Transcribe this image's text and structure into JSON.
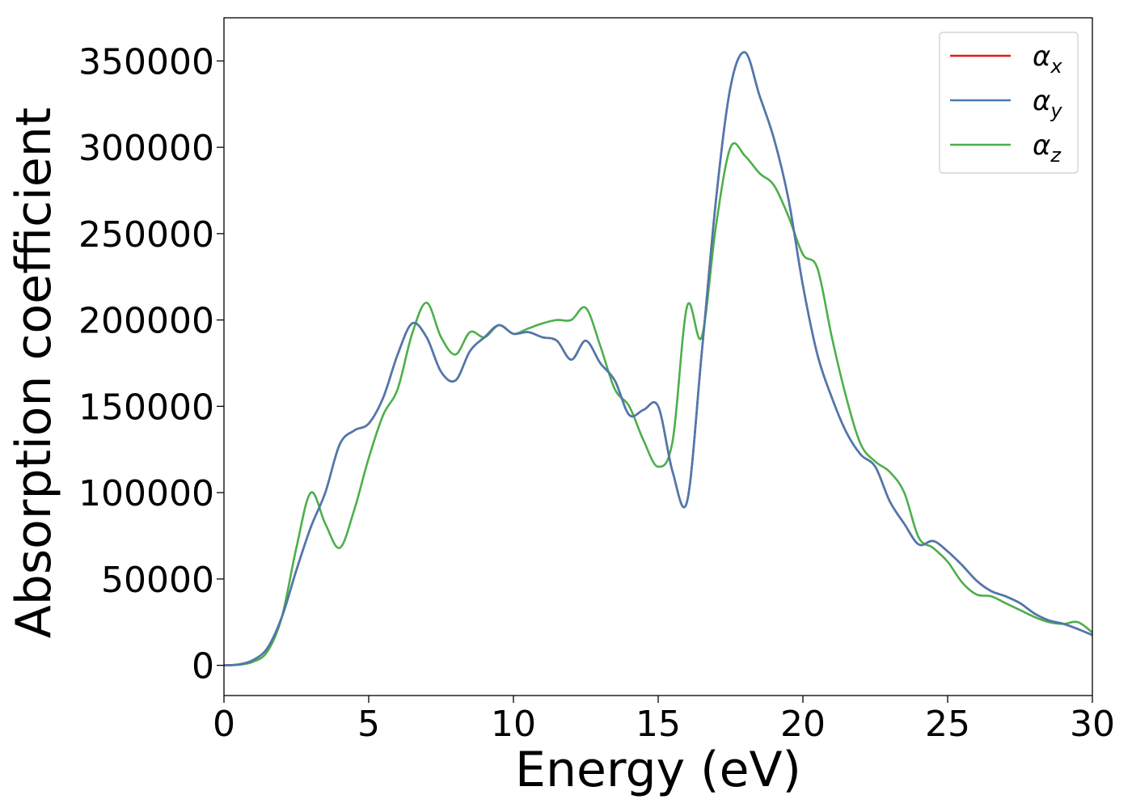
{
  "chart_data": {
    "type": "line",
    "xlabel": "Energy (eV)",
    "ylabel": "Absorption coefficient",
    "xlim": [
      0,
      30
    ],
    "ylim": [
      -17500,
      375000
    ],
    "xticks": [
      0,
      5,
      10,
      15,
      20,
      25,
      30
    ],
    "yticks": [
      0,
      50000,
      100000,
      150000,
      200000,
      250000,
      300000,
      350000
    ],
    "grid": false,
    "legend_position": "top-right",
    "series": [
      {
        "name": "α",
        "subscript": "x",
        "color": "#e41a1c",
        "x": [
          0,
          0.5,
          1.0,
          1.5,
          2.0,
          2.5,
          3.0,
          3.5,
          4.0,
          4.5,
          5.0,
          5.5,
          6.0,
          6.5,
          7.0,
          7.5,
          8.0,
          8.5,
          9.0,
          9.5,
          10.0,
          10.5,
          11.0,
          11.5,
          12.0,
          12.5,
          13.0,
          13.5,
          14.0,
          14.5,
          15.0,
          15.5,
          16.0,
          16.5,
          17.0,
          17.5,
          18.0,
          18.5,
          19.0,
          19.5,
          20.0,
          20.5,
          21.0,
          21.5,
          22.0,
          22.5,
          23.0,
          23.5,
          24.0,
          24.5,
          25.0,
          25.5,
          26.0,
          26.5,
          27.0,
          27.5,
          28.0,
          28.5,
          29.0,
          29.5,
          30.0
        ],
        "y": [
          0,
          500,
          3000,
          10000,
          28000,
          55000,
          80000,
          100000,
          128000,
          136000,
          140000,
          155000,
          180000,
          198000,
          190000,
          170000,
          165000,
          182000,
          190000,
          197000,
          192000,
          193000,
          190000,
          188000,
          177000,
          188000,
          175000,
          165000,
          145000,
          148000,
          150000,
          112000,
          95000,
          180000,
          270000,
          335000,
          355000,
          330000,
          305000,
          270000,
          220000,
          180000,
          155000,
          135000,
          122000,
          115000,
          95000,
          82000,
          70000,
          72000,
          66000,
          58000,
          49000,
          43000,
          40000,
          36000,
          30000,
          26000,
          24000,
          21000,
          17500
        ]
      },
      {
        "name": "α",
        "subscript": "y",
        "color": "#4a7ab0",
        "x": [
          0,
          0.5,
          1.0,
          1.5,
          2.0,
          2.5,
          3.0,
          3.5,
          4.0,
          4.5,
          5.0,
          5.5,
          6.0,
          6.5,
          7.0,
          7.5,
          8.0,
          8.5,
          9.0,
          9.5,
          10.0,
          10.5,
          11.0,
          11.5,
          12.0,
          12.5,
          13.0,
          13.5,
          14.0,
          14.5,
          15.0,
          15.5,
          16.0,
          16.5,
          17.0,
          17.5,
          18.0,
          18.5,
          19.0,
          19.5,
          20.0,
          20.5,
          21.0,
          21.5,
          22.0,
          22.5,
          23.0,
          23.5,
          24.0,
          24.5,
          25.0,
          25.5,
          26.0,
          26.5,
          27.0,
          27.5,
          28.0,
          28.5,
          29.0,
          29.5,
          30.0
        ],
        "y": [
          0,
          500,
          3000,
          10000,
          28000,
          55000,
          80000,
          100000,
          128000,
          136000,
          140000,
          155000,
          180000,
          198000,
          190000,
          170000,
          165000,
          182000,
          190000,
          197000,
          192000,
          193000,
          190000,
          188000,
          177000,
          188000,
          175000,
          165000,
          145000,
          148000,
          150000,
          112000,
          95000,
          180000,
          270000,
          335000,
          355000,
          330000,
          305000,
          270000,
          220000,
          180000,
          155000,
          135000,
          122000,
          115000,
          95000,
          82000,
          70000,
          72000,
          66000,
          58000,
          49000,
          43000,
          40000,
          36000,
          30000,
          26000,
          24000,
          21000,
          17500
        ]
      },
      {
        "name": "α",
        "subscript": "z",
        "color": "#4daf4a",
        "x": [
          0,
          0.5,
          1.0,
          1.5,
          2.0,
          2.5,
          3.0,
          3.5,
          4.0,
          4.5,
          5.0,
          5.5,
          6.0,
          6.5,
          7.0,
          7.5,
          8.0,
          8.5,
          9.0,
          9.5,
          10.0,
          10.5,
          11.0,
          11.5,
          12.0,
          12.5,
          13.0,
          13.5,
          14.0,
          14.5,
          15.0,
          15.5,
          16.0,
          16.5,
          17.0,
          17.5,
          18.0,
          18.5,
          19.0,
          19.5,
          20.0,
          20.5,
          21.0,
          21.5,
          22.0,
          22.5,
          23.0,
          23.5,
          24.0,
          24.5,
          25.0,
          25.5,
          26.0,
          26.5,
          27.0,
          27.5,
          28.0,
          28.5,
          29.0,
          29.5,
          30.0
        ],
        "y": [
          0,
          300,
          2000,
          8000,
          28000,
          68000,
          100000,
          82000,
          68000,
          90000,
          120000,
          145000,
          160000,
          192000,
          210000,
          190000,
          180000,
          193000,
          190000,
          197000,
          192000,
          195000,
          198000,
          200000,
          200000,
          207000,
          185000,
          160000,
          150000,
          130000,
          115000,
          130000,
          208000,
          190000,
          255000,
          300000,
          295000,
          285000,
          278000,
          260000,
          238000,
          230000,
          190000,
          155000,
          128000,
          118000,
          112000,
          100000,
          74000,
          68000,
          60000,
          48000,
          41000,
          40000,
          36000,
          32000,
          28000,
          25000,
          24000,
          25000,
          19000
        ]
      }
    ]
  }
}
